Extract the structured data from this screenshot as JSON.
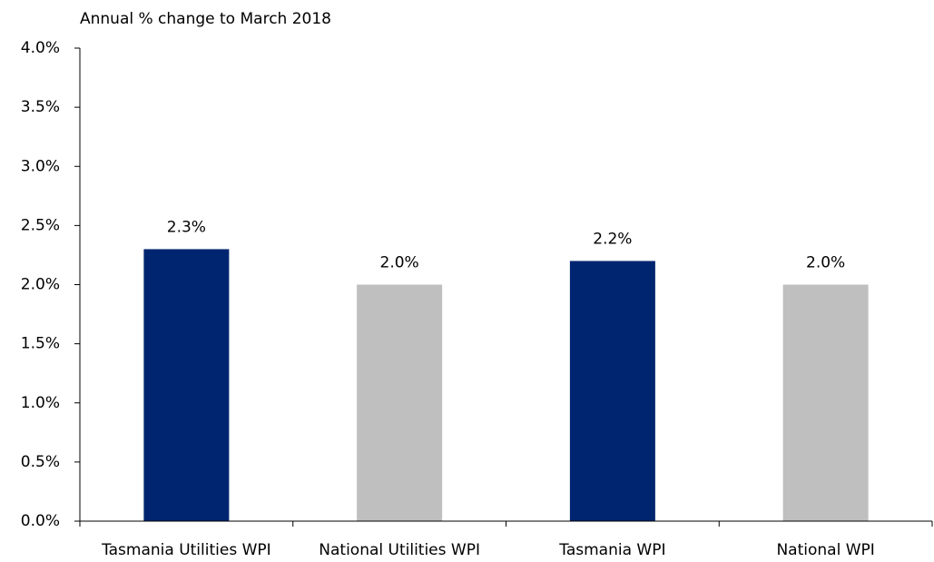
{
  "chart_data": {
    "type": "bar",
    "title": "Annual % change to March 2018",
    "categories": [
      "Tasmania Utilities WPI",
      "National Utilities WPI",
      "Tasmania WPI",
      "National WPI"
    ],
    "values": [
      2.3,
      2.0,
      2.2,
      2.0
    ],
    "value_labels": [
      "2.3%",
      "2.0%",
      "2.2%",
      "2.0%"
    ],
    "colors": [
      "#002570",
      "#bfbfbf",
      "#002570",
      "#bfbfbf"
    ],
    "ylim": [
      0,
      4
    ],
    "yticks": [
      {
        "value": 0,
        "label": "0.0%"
      },
      {
        "value": 0.5,
        "label": "0.5%"
      },
      {
        "value": 1,
        "label": "1.0%"
      },
      {
        "value": 1.5,
        "label": "1.5%"
      },
      {
        "value": 2,
        "label": "2.0%"
      },
      {
        "value": 2.5,
        "label": "2.5%"
      },
      {
        "value": 3,
        "label": "3.0%"
      },
      {
        "value": 3.5,
        "label": "3.5%"
      },
      {
        "value": 4,
        "label": "4.0%"
      }
    ],
    "grid": false
  }
}
